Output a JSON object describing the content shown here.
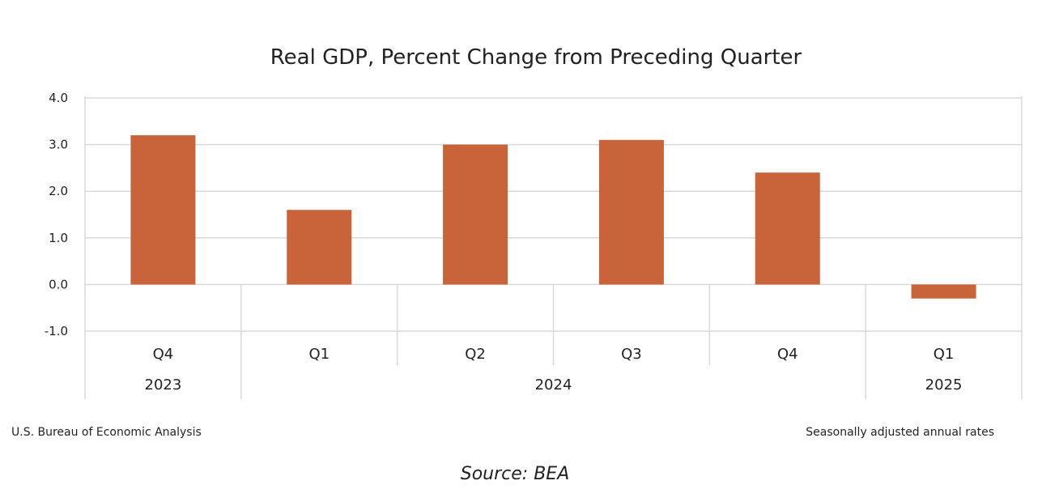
{
  "chart_data": {
    "type": "bar",
    "title": "Real GDP, Percent Change from Preceding Quarter",
    "categories": [
      "Q4",
      "Q1",
      "Q2",
      "Q3",
      "Q4",
      "Q1"
    ],
    "year_groups": [
      {
        "label": "2023",
        "count": 1
      },
      {
        "label": "2024",
        "count": 4
      },
      {
        "label": "2025",
        "count": 1
      }
    ],
    "values": [
      3.2,
      1.6,
      3.0,
      3.1,
      2.4,
      -0.3
    ],
    "ylim": [
      -1.0,
      4.0
    ],
    "yticks": [
      4.0,
      3.0,
      2.0,
      1.0,
      0.0,
      -1.0
    ],
    "xlabel": "",
    "ylabel": "",
    "bar_color": "#c8633a",
    "grid": true,
    "legend": "none"
  },
  "footer": {
    "left_note": "U.S. Bureau of Economic Analysis",
    "right_note": "Seasonally adjusted annual rates",
    "source": "Source: BEA"
  }
}
